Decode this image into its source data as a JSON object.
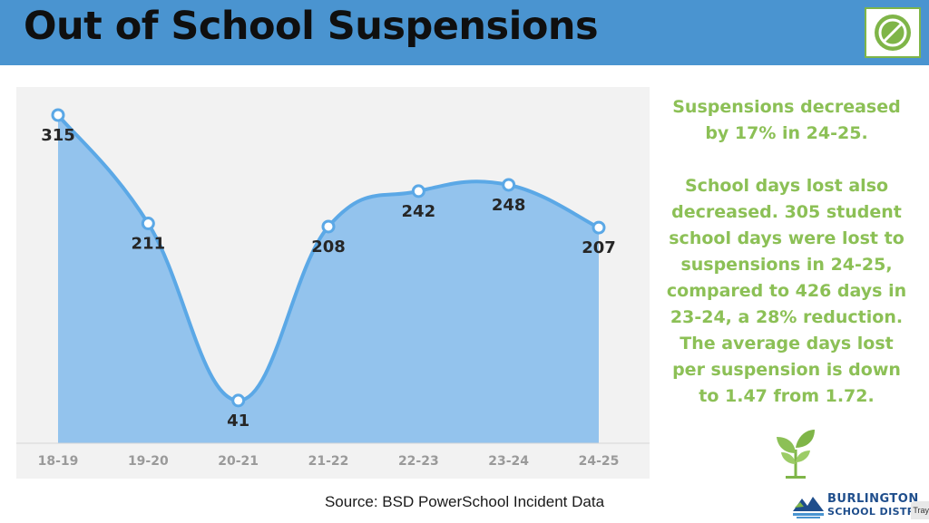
{
  "header": {
    "title": "Out of School Suspensions",
    "logo_icon": "crossed-circle-icon",
    "accent_color": "#4a94d0"
  },
  "chart_data": {
    "type": "area",
    "categories": [
      "18-19",
      "19-20",
      "20-21",
      "21-22",
      "22-23",
      "23-24",
      "24-25"
    ],
    "values": [
      315,
      211,
      41,
      208,
      242,
      248,
      207
    ],
    "title": "",
    "xlabel": "",
    "ylabel": "",
    "ylim": [
      0,
      335
    ],
    "grid": false,
    "line_color": "#5ba8e6",
    "fill_color": "#93c3ed",
    "data_labels": true
  },
  "summary": {
    "headline": "Suspensions decreased by 17% in 24-25.",
    "body": "School days lost also decreased. 305 student school days were lost to suspensions in 24-25, compared to 426 days in 23-24, a 28% reduction. The average days lost per suspension is down to 1.47 from 1.72.",
    "text_color": "#8cc056",
    "icon": "sprout-icon"
  },
  "footer": {
    "source": "Source: BSD PowerSchool Incident Data",
    "district_name": "BURLINGTON",
    "district_sub": "SCHOOL DISTRICT",
    "tray_label": "Tray"
  }
}
